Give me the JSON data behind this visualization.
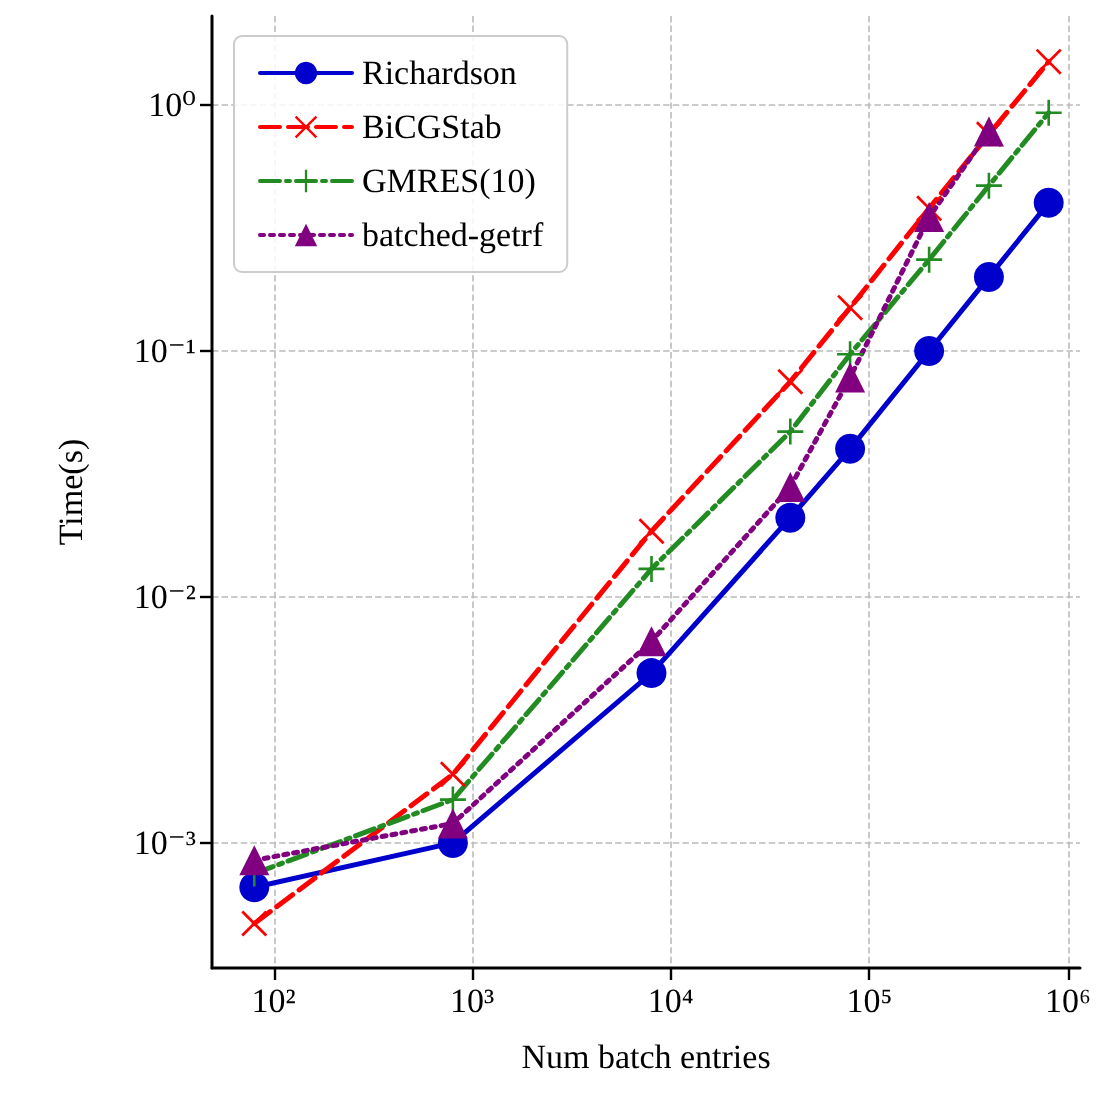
{
  "chart_data": {
    "type": "line",
    "xlabel": "Num batch entries",
    "ylabel": "Time(s)",
    "log": "xy",
    "grid": true,
    "legend": "top left",
    "x": [
      80,
      800,
      8000,
      40000,
      80000,
      200000,
      400000,
      800000
    ],
    "xlim": [
      49,
      1150000
    ],
    "xticks": [
      {
        "value": 100,
        "label": "10²"
      },
      {
        "value": 1000,
        "label": "10³"
      },
      {
        "value": 10000,
        "label": "10⁴"
      },
      {
        "value": 100000,
        "label": "10⁵"
      },
      {
        "value": 1000000,
        "label": "10⁶"
      }
    ],
    "ylim": [
      0.00031,
      2.3
    ],
    "yticks": [
      {
        "value": 0.001,
        "label": "10⁻³"
      },
      {
        "value": 0.01,
        "label": "10⁻²"
      },
      {
        "value": 0.1,
        "label": "10⁻¹"
      },
      {
        "value": 1,
        "label": "10⁰"
      }
    ],
    "series": [
      {
        "name": "Richardson",
        "color": "#0000cc",
        "marker": "circle",
        "line_style": "solid",
        "values": [
          0.00066,
          0.001,
          0.0049,
          0.021,
          0.04,
          0.1,
          0.2,
          0.4
        ]
      },
      {
        "name": "BiCGStab",
        "color": "#ff0000",
        "marker": "cross",
        "line_style": "dashed",
        "values": [
          0.00047,
          0.0019,
          0.0185,
          0.075,
          0.15,
          0.38,
          0.76,
          1.5
        ]
      },
      {
        "name": "GMRES(10)",
        "color": "#228b22",
        "marker": "cross",
        "line_style": "dashed",
        "values": [
          0.00075,
          0.0015,
          0.013,
          0.047,
          0.097,
          0.235,
          0.47,
          0.93
        ]
      },
      {
        "name": "batched-getrf",
        "color": "#800080",
        "marker": "triangle",
        "line_style": "dotted",
        "values": [
          0.00085,
          0.0012,
          0.0066,
          0.028,
          0.078,
          0.35,
          0.78,
          null
        ]
      }
    ]
  }
}
